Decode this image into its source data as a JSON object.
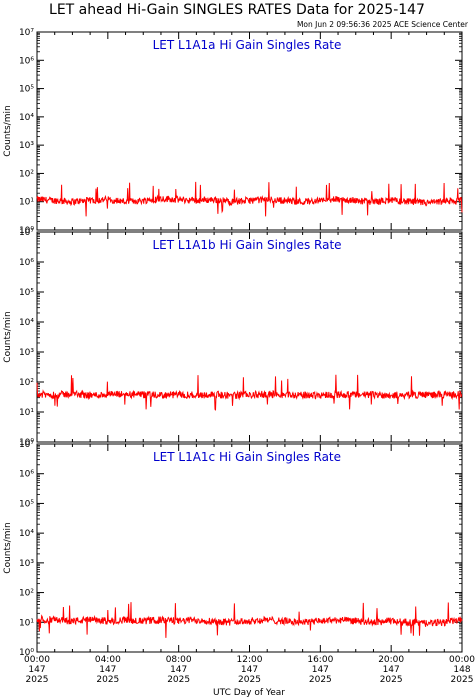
{
  "header": {
    "title": "LET ahead Hi-Gain SINGLES RATES Data for 2025-147",
    "stamp": "Mon Jun  2 09:56:36 2025 ACE Science Center"
  },
  "colors": {
    "series": "#ff0000",
    "panel_title": "#0000cc",
    "axes": "#000000"
  },
  "chart_data": [
    {
      "type": "line",
      "title": "LET L1A1a Hi Gain Singles Rate",
      "ylabel": "Counts/min",
      "yscale": "log",
      "ylim": [
        1,
        10000000
      ],
      "yticks": [
        "10⁰",
        "10¹",
        "10²",
        "10³",
        "10⁴",
        "10⁵",
        "10⁶",
        "10⁷"
      ],
      "xlim": [
        "2025-05-27T00:00",
        "2025-05-28T00:00"
      ],
      "grid": false,
      "series": [
        {
          "x": [
            "2025-05-27T00:00",
            "2025-05-27T01:00",
            "2025-05-27T02:00",
            "2025-05-27T03:00",
            "2025-05-27T04:00",
            "2025-05-27T05:00",
            "2025-05-27T06:00",
            "2025-05-27T07:00",
            "2025-05-27T08:00",
            "2025-05-27T09:00",
            "2025-05-27T10:00",
            "2025-05-27T11:00",
            "2025-05-27T12:00",
            "2025-05-27T13:00",
            "2025-05-27T14:00",
            "2025-05-27T15:00",
            "2025-05-27T16:00",
            "2025-05-27T17:00",
            "2025-05-27T18:00",
            "2025-05-27T19:00",
            "2025-05-27T20:00",
            "2025-05-27T21:00",
            "2025-05-27T22:00",
            "2025-05-27T23:00",
            "2025-05-28T00:00"
          ],
          "y": [
            12,
            11,
            10,
            11,
            12,
            10,
            11,
            13,
            12,
            11,
            12,
            10,
            11,
            12,
            11,
            10,
            11,
            12,
            11,
            10,
            11,
            10,
            9,
            10,
            11
          ]
        }
      ]
    },
    {
      "type": "line",
      "title": "LET L1A1b Hi Gain Singles Rate",
      "ylabel": "Counts/min",
      "yscale": "log",
      "ylim": [
        1,
        10000000
      ],
      "yticks": [
        "10⁰",
        "10¹",
        "10²",
        "10³",
        "10⁴",
        "10⁵",
        "10⁶",
        "10⁷"
      ],
      "xlim": [
        "2025-05-27T00:00",
        "2025-05-28T00:00"
      ],
      "grid": false,
      "series": [
        {
          "x": [
            "2025-05-27T00:00",
            "2025-05-27T01:00",
            "2025-05-27T02:00",
            "2025-05-27T03:00",
            "2025-05-27T04:00",
            "2025-05-27T05:00",
            "2025-05-27T06:00",
            "2025-05-27T07:00",
            "2025-05-27T08:00",
            "2025-05-27T09:00",
            "2025-05-27T10:00",
            "2025-05-27T11:00",
            "2025-05-27T12:00",
            "2025-05-27T13:00",
            "2025-05-27T14:00",
            "2025-05-27T15:00",
            "2025-05-27T16:00",
            "2025-05-27T17:00",
            "2025-05-27T18:00",
            "2025-05-27T19:00",
            "2025-05-27T20:00",
            "2025-05-27T21:00",
            "2025-05-27T22:00",
            "2025-05-27T23:00",
            "2025-05-28T00:00"
          ],
          "y": [
            38,
            37,
            40,
            36,
            38,
            39,
            37,
            36,
            38,
            37,
            38,
            36,
            37,
            39,
            38,
            36,
            37,
            38,
            37,
            38,
            36,
            37,
            38,
            37,
            38
          ]
        }
      ]
    },
    {
      "type": "line",
      "title": "LET L1A1c Hi Gain Singles Rate",
      "ylabel": "Counts/min",
      "yscale": "log",
      "ylim": [
        1,
        10000000
      ],
      "yticks": [
        "10⁰",
        "10¹",
        "10²",
        "10³",
        "10⁴",
        "10⁵",
        "10⁶",
        "10⁷"
      ],
      "xlim": [
        "2025-05-27T00:00",
        "2025-05-28T00:00"
      ],
      "xticks": [
        {
          "time": "00:00",
          "day": "147",
          "year": "2025"
        },
        {
          "time": "04:00",
          "day": "147",
          "year": "2025"
        },
        {
          "time": "08:00",
          "day": "147",
          "year": "2025"
        },
        {
          "time": "12:00",
          "day": "147",
          "year": "2025"
        },
        {
          "time": "16:00",
          "day": "147",
          "year": "2025"
        },
        {
          "time": "20:00",
          "day": "147",
          "year": "2025"
        },
        {
          "time": "00:00",
          "day": "148",
          "year": "2025"
        }
      ],
      "xlabel": "UTC Day of Year",
      "grid": false,
      "series": [
        {
          "x": [
            "2025-05-27T00:00",
            "2025-05-27T01:00",
            "2025-05-27T02:00",
            "2025-05-27T03:00",
            "2025-05-27T04:00",
            "2025-05-27T05:00",
            "2025-05-27T06:00",
            "2025-05-27T07:00",
            "2025-05-27T08:00",
            "2025-05-27T09:00",
            "2025-05-27T10:00",
            "2025-05-27T11:00",
            "2025-05-27T12:00",
            "2025-05-27T13:00",
            "2025-05-27T14:00",
            "2025-05-27T15:00",
            "2025-05-27T16:00",
            "2025-05-27T17:00",
            "2025-05-27T18:00",
            "2025-05-27T19:00",
            "2025-05-27T20:00",
            "2025-05-27T21:00",
            "2025-05-27T22:00",
            "2025-05-27T23:00",
            "2025-05-28T00:00"
          ],
          "y": [
            13,
            12,
            11,
            12,
            11,
            12,
            11,
            12,
            11,
            12,
            11,
            10,
            11,
            12,
            11,
            10,
            11,
            12,
            11,
            10,
            11,
            10,
            9,
            10,
            12
          ]
        }
      ]
    }
  ]
}
